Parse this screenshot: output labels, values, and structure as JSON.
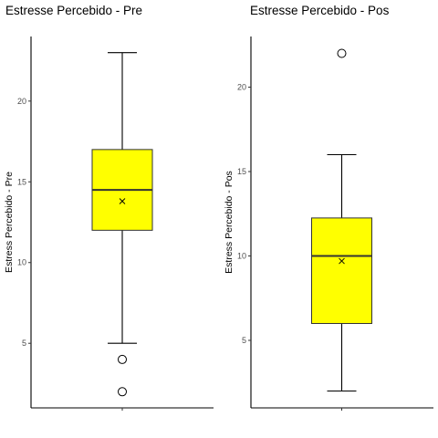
{
  "chart_data": [
    {
      "type": "box",
      "title": "Estresse Percebido - Pre",
      "ylabel": "Estress Percebido - Pre",
      "yticks": [
        5,
        10,
        15,
        20
      ],
      "ylim": [
        1.0,
        24.0
      ],
      "box": {
        "whisker_low": 5,
        "q1": 12,
        "median": 14.5,
        "q3": 17,
        "whisker_high": 23,
        "mean": 13.8
      },
      "outliers": [
        4,
        2
      ],
      "box_color": "#ffff00"
    },
    {
      "type": "box",
      "title": "Estresse Percebido - Pos",
      "ylabel": "Estress Percebido - Pos",
      "yticks": [
        5,
        10,
        15,
        20
      ],
      "ylim": [
        1.0,
        23.0
      ],
      "box": {
        "whisker_low": 2,
        "q1": 6,
        "median": 10,
        "q3": 12.25,
        "whisker_high": 16,
        "mean": 9.7
      },
      "outliers": [
        22
      ],
      "box_color": "#ffff00"
    }
  ]
}
